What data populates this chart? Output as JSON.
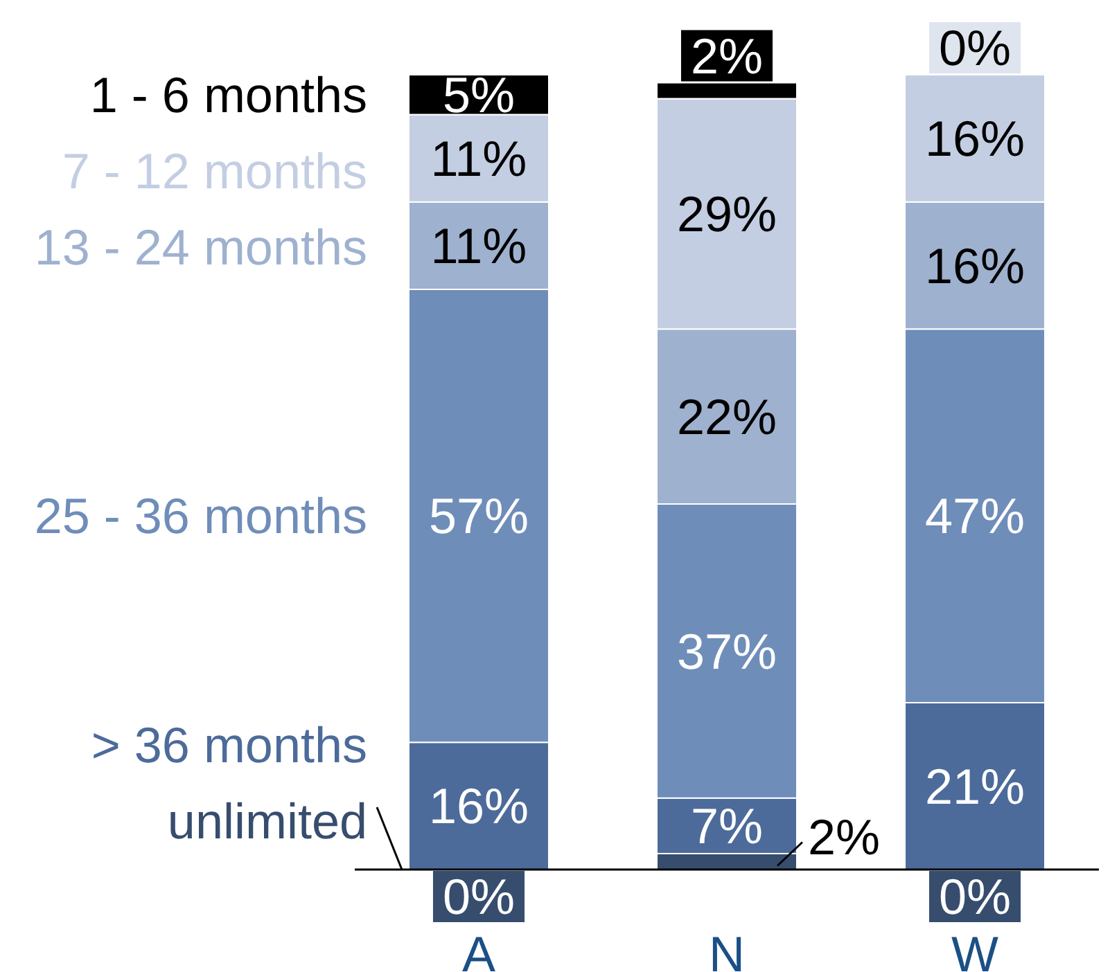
{
  "chart_data": {
    "type": "bar",
    "stacked": true,
    "categories": [
      "A",
      "N",
      "W"
    ],
    "ylim": [
      0,
      100
    ],
    "tick_labels": "x",
    "legend": "left",
    "series": [
      {
        "name": "unlimited",
        "color": "#374d6e",
        "values": [
          0,
          2,
          0
        ],
        "value_labels": [
          "0%",
          "2%",
          "0%"
        ]
      },
      {
        "name": "> 36 months",
        "color": "#4c6b9a",
        "values": [
          16,
          7,
          21
        ],
        "value_labels": [
          "16%",
          "7%",
          "21%"
        ]
      },
      {
        "name": "25 - 36 months",
        "color": "#6f8db9",
        "values": [
          57,
          37,
          47
        ],
        "value_labels": [
          "57%",
          "37%",
          "47%"
        ]
      },
      {
        "name": "13 - 24 months",
        "color": "#9eb1cf",
        "values": [
          11,
          22,
          16
        ],
        "value_labels": [
          "11%",
          "22%",
          "16%"
        ]
      },
      {
        "name": "7 - 12 months",
        "color": "#c3cee2",
        "values": [
          11,
          29,
          16
        ],
        "value_labels": [
          "11%",
          "29%",
          "16%"
        ]
      },
      {
        "name": "1 - 6 months",
        "color": "#000000",
        "colors": [
          "#000000",
          "#000000",
          "#dfe5ef"
        ],
        "values": [
          5,
          2,
          0
        ],
        "value_labels": [
          "5%",
          "2%",
          "0%"
        ]
      }
    ]
  }
}
